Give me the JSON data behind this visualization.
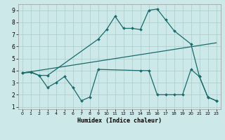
{
  "bg_color": "#cce8e8",
  "grid_color": "#aacccc",
  "line_color": "#1a6b6b",
  "marker_color": "#1a6b6b",
  "xlabel": "Humidex (Indice chaleur)",
  "xlim": [
    -0.5,
    23.5
  ],
  "ylim": [
    0.8,
    9.5
  ],
  "xticks": [
    0,
    1,
    2,
    3,
    4,
    5,
    6,
    7,
    8,
    9,
    10,
    11,
    12,
    13,
    14,
    15,
    16,
    17,
    18,
    19,
    20,
    21,
    22,
    23
  ],
  "yticks": [
    1,
    2,
    3,
    4,
    5,
    6,
    7,
    8,
    9
  ],
  "curve_top": {
    "x": [
      0,
      1,
      2,
      3,
      9,
      10,
      11,
      12,
      13,
      14,
      15,
      16,
      17,
      18,
      20,
      21,
      22,
      23
    ],
    "y": [
      3.8,
      3.9,
      3.6,
      3.6,
      6.6,
      7.4,
      8.5,
      7.5,
      7.5,
      7.4,
      9.0,
      9.1,
      8.2,
      7.3,
      6.2,
      3.5,
      1.8,
      1.5
    ]
  },
  "curve_mid": {
    "x": [
      0,
      23
    ],
    "y": [
      3.8,
      6.3
    ]
  },
  "curve_bot": {
    "x": [
      0,
      1,
      2,
      3,
      4,
      5,
      6,
      7,
      8,
      9,
      14,
      15,
      16,
      17,
      18,
      19,
      20,
      21,
      22,
      23
    ],
    "y": [
      3.8,
      3.85,
      3.6,
      2.6,
      3.0,
      3.5,
      2.6,
      1.5,
      1.8,
      4.1,
      4.0,
      4.0,
      2.0,
      2.0,
      2.0,
      2.0,
      4.1,
      3.5,
      1.8,
      1.5
    ]
  }
}
